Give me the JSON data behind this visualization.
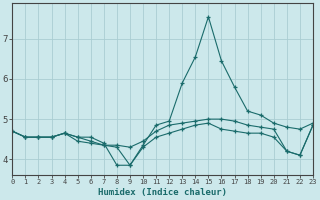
{
  "xlabel": "Humidex (Indice chaleur)",
  "ylabel": "",
  "background_color": "#cce8eb",
  "grid_color": "#aacdd2",
  "line_color": "#1a6b6b",
  "x": [
    0,
    1,
    2,
    3,
    4,
    5,
    6,
    7,
    8,
    9,
    10,
    11,
    12,
    13,
    14,
    15,
    16,
    17,
    18,
    19,
    20,
    21,
    22,
    23
  ],
  "line1": [
    4.7,
    4.55,
    4.55,
    4.55,
    4.65,
    4.55,
    4.55,
    4.4,
    3.85,
    3.85,
    4.35,
    4.85,
    4.95,
    5.9,
    6.55,
    7.55,
    6.45,
    5.8,
    5.2,
    5.1,
    4.9,
    4.8,
    4.75,
    4.9
  ],
  "line2": [
    4.7,
    4.55,
    4.55,
    4.55,
    4.65,
    4.55,
    4.45,
    4.35,
    4.35,
    4.3,
    4.45,
    4.7,
    4.85,
    4.9,
    4.95,
    5.0,
    5.0,
    4.95,
    4.85,
    4.8,
    4.75,
    4.2,
    4.1,
    4.85
  ],
  "line3": [
    4.7,
    4.55,
    4.55,
    4.55,
    4.65,
    4.45,
    4.4,
    4.35,
    4.3,
    3.85,
    4.3,
    4.55,
    4.65,
    4.75,
    4.85,
    4.9,
    4.75,
    4.7,
    4.65,
    4.65,
    4.55,
    4.2,
    4.1,
    4.85
  ],
  "xlim": [
    0,
    23
  ],
  "ylim": [
    3.6,
    7.9
  ],
  "yticks": [
    4,
    5,
    6,
    7
  ],
  "xticks": [
    0,
    1,
    2,
    3,
    4,
    5,
    6,
    7,
    8,
    9,
    10,
    11,
    12,
    13,
    14,
    15,
    16,
    17,
    18,
    19,
    20,
    21,
    22,
    23
  ]
}
